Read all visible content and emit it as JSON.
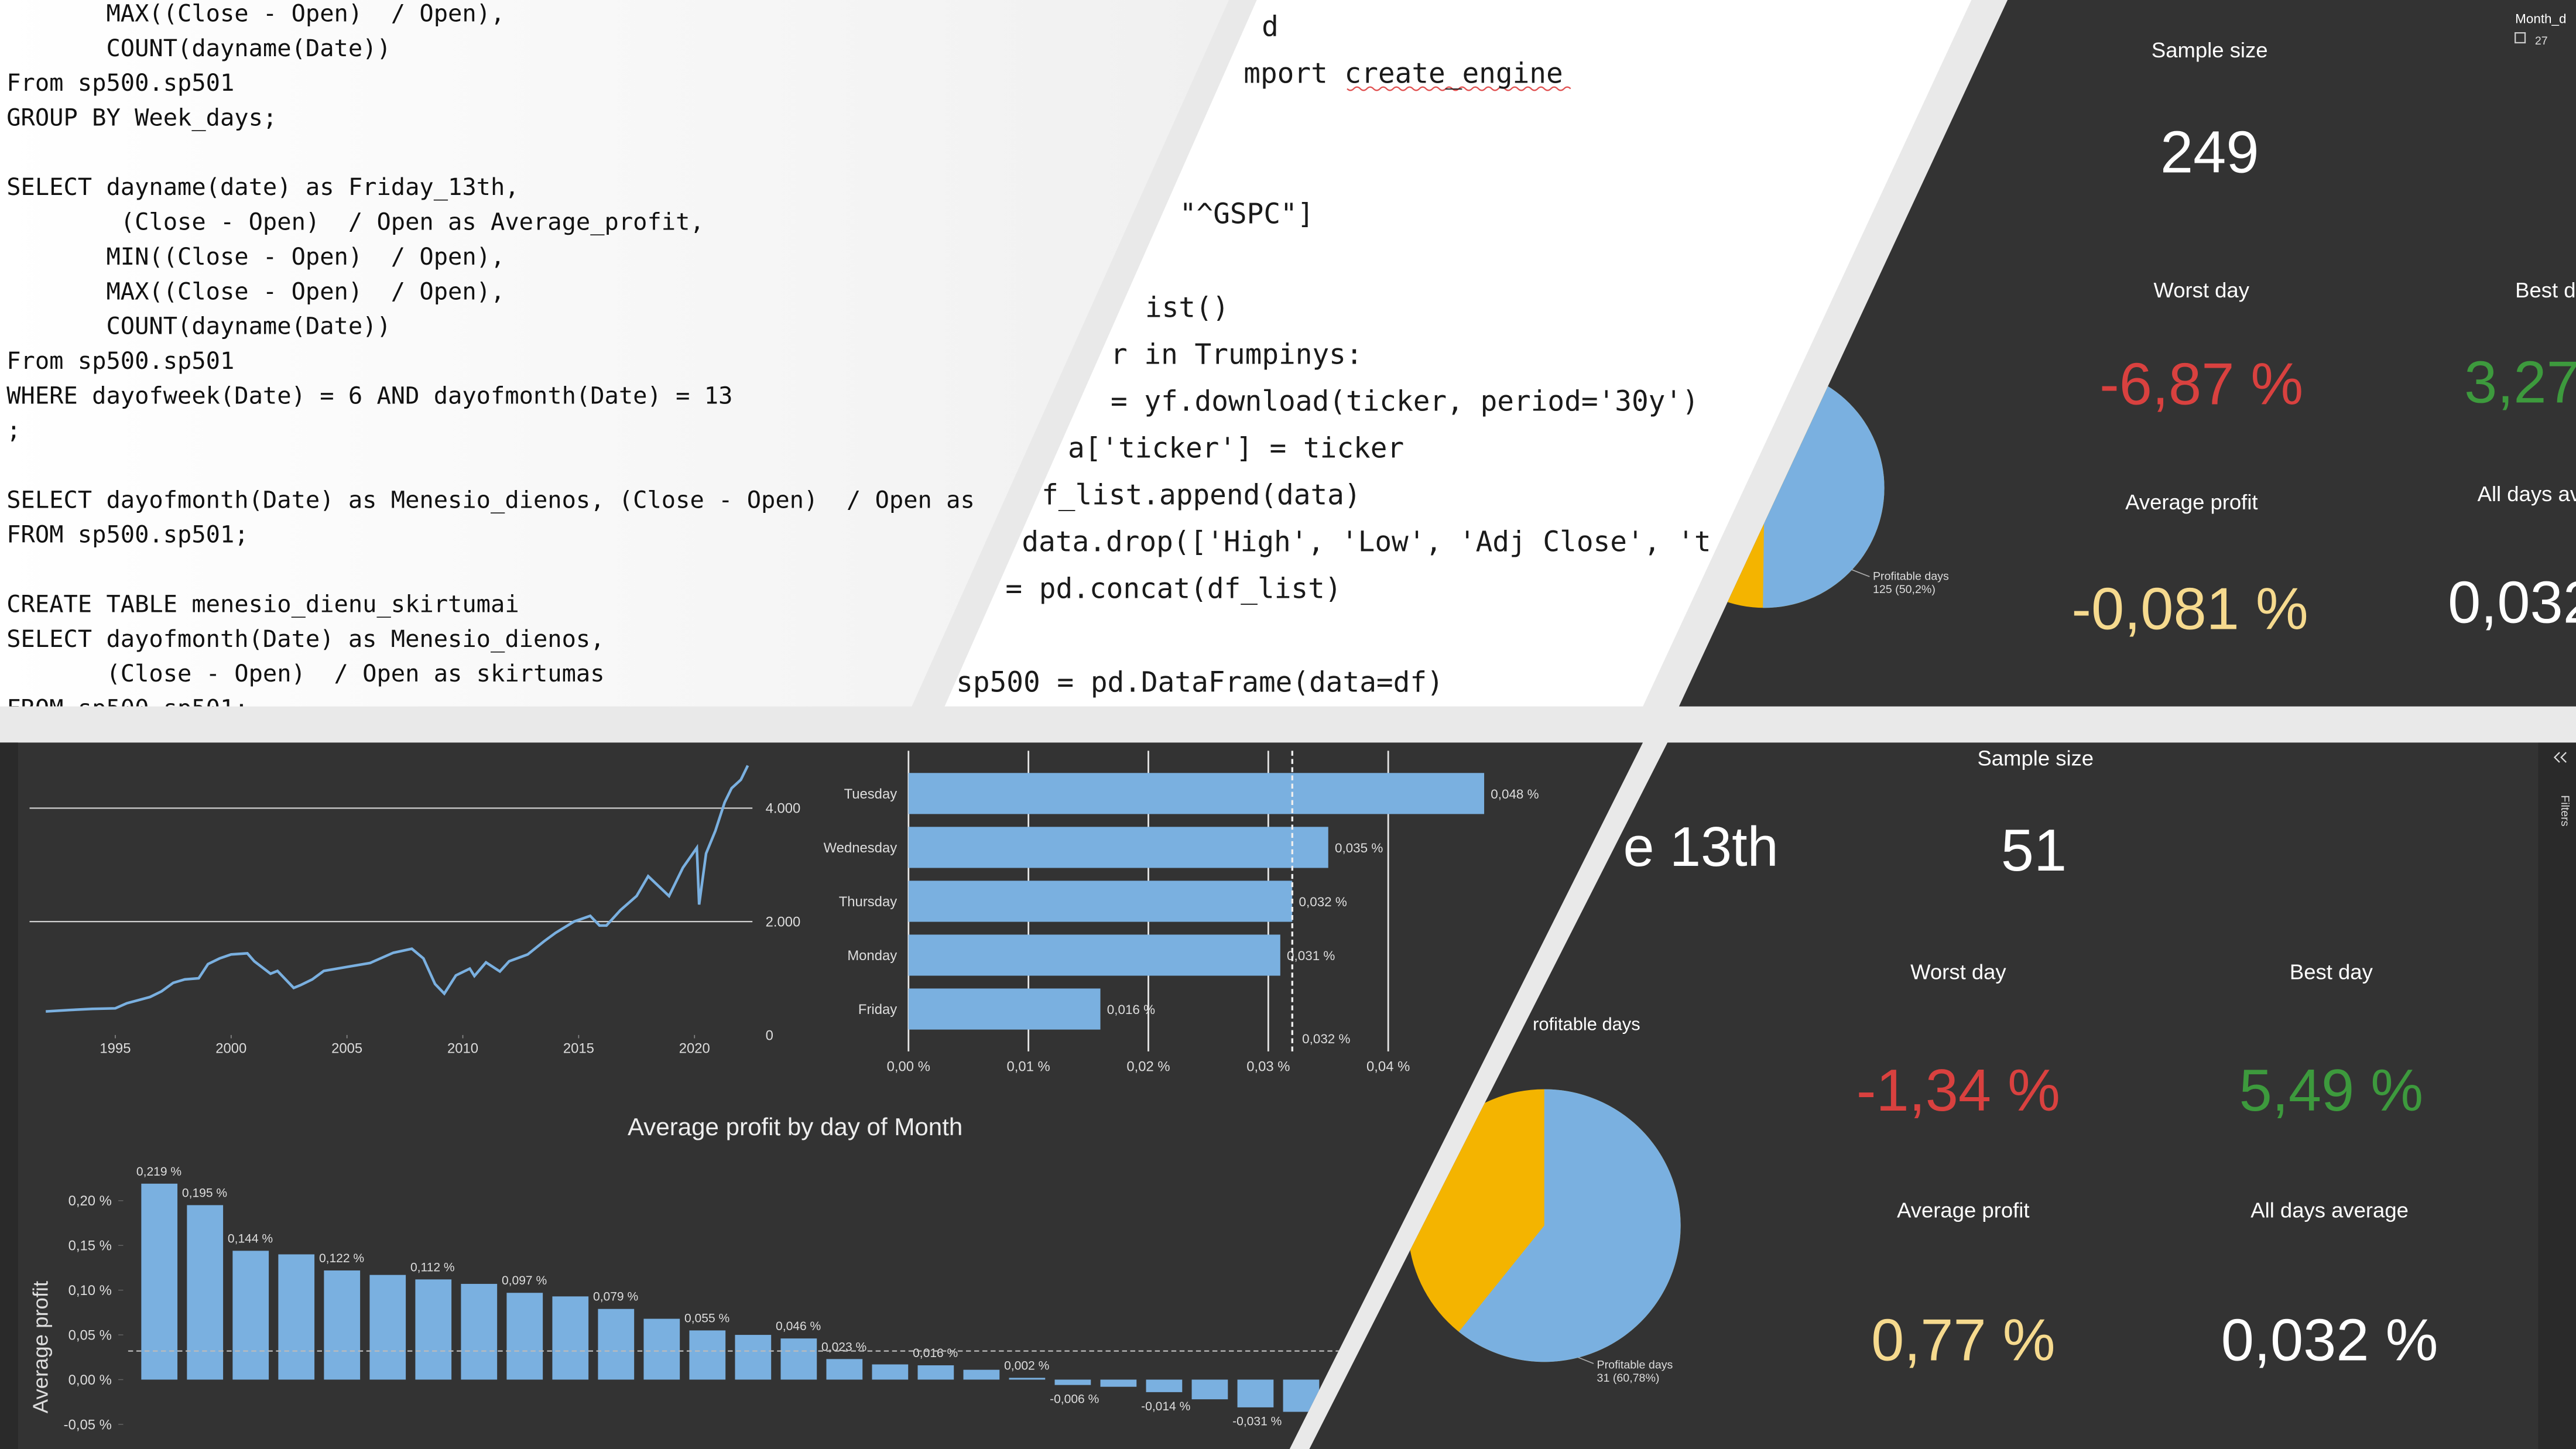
{
  "sql_editor": {
    "blocks": [
      [
        "       MAX((Close - Open)  / Open),",
        "       COUNT(dayname(Date))",
        "From sp500.sp501",
        "GROUP BY Week_days;"
      ],
      [
        "SELECT dayname(date) as Friday_13th,",
        "        (Close - Open)  / Open as Average_profit,",
        "       MIN((Close - Open)  / Open),",
        "       MAX((Close - Open)  / Open),",
        "       COUNT(dayname(Date))",
        "From sp500.sp501",
        "WHERE dayofweek(Date) = 6 AND dayofmonth(Date) = 13",
        ";"
      ],
      [
        "SELECT dayofmonth(Date) as Menesio_dienos, (Close - Open)  / Open as",
        "FROM sp500.sp501;"
      ],
      [
        "CREATE TABLE menesio_dienu_skirtumai",
        "SELECT dayofmonth(Date) as Menesio_dienos,",
        "       (Close - Open)  / Open as skirtumas",
        "FROM sp500.sp501;"
      ]
    ]
  },
  "python_editor": {
    "blocks": [
      [
        "d",
        "mport create_engine"
      ],
      [
        "\"^GSPC\"]"
      ],
      [
        "ist()",
        "r in Trumpinys:",
        "= yf.download(ticker, period='30y')",
        "a['ticker'] = ticker",
        "f_list.append(data)",
        "data.drop(['High', 'Low', 'Adj Close', 't",
        "= pd.concat(df_list)"
      ],
      [
        "sp500 = pd.DataFrame(data=df)"
      ]
    ]
  },
  "dashboard_top": {
    "filter_label": "Month_d",
    "filter_option": "27",
    "sample_size_label": "Sample size",
    "sample_size": "249",
    "worst_day_label": "Worst day",
    "worst_day": "-6,87 %",
    "best_day_label": "Best d",
    "best_day": "3,27",
    "average_profit_label": "Average profit",
    "average_profit": "-0,081 %",
    "all_days_label": "All days av",
    "all_days": "0,032"
  },
  "dashboard_bottom": {
    "heading": "e 13th",
    "pie_title": "rofitable days",
    "sample_size_label": "Sample size",
    "sample_size": "51",
    "worst_day_label": "Worst day",
    "worst_day": "-1,34 %",
    "best_day_label": "Best day",
    "best_day": "5,49 %",
    "average_profit_label": "Average profit",
    "average_profit": "0,77 %",
    "all_days_label": "All days average",
    "all_days": "0,032 %",
    "filters_label": "Filters"
  },
  "chart_data": [
    {
      "type": "line",
      "x": [
        1992.0,
        1993.0,
        1994.0,
        1995.0,
        1995.5,
        1996.0,
        1996.5,
        1997.0,
        1997.5,
        1998.0,
        1998.6,
        1999.0,
        1999.5,
        2000.0,
        2000.7,
        2001.0,
        2001.7,
        2002.0,
        2002.7,
        2003.0,
        2003.5,
        2004.0,
        2005.0,
        2006.0,
        2007.0,
        2007.8,
        2008.3,
        2008.8,
        2009.2,
        2009.7,
        2010.3,
        2010.5,
        2011.0,
        2011.6,
        2012.0,
        2012.8,
        2013.5,
        2014.0,
        2014.8,
        2015.5,
        2015.9,
        2016.2,
        2016.8,
        2017.5,
        2018.0,
        2018.9,
        2019.5,
        2020.1,
        2020.2,
        2020.5,
        2020.9,
        2021.3,
        2021.6,
        2022.0,
        2022.3
      ],
      "values": [
        415,
        440,
        460,
        470,
        560,
        615,
        670,
        770,
        920,
        980,
        1000,
        1250,
        1350,
        1420,
        1440,
        1300,
        1080,
        1130,
        830,
        880,
        980,
        1130,
        1200,
        1270,
        1450,
        1520,
        1350,
        900,
        730,
        1050,
        1170,
        1040,
        1280,
        1120,
        1300,
        1420,
        1650,
        1800,
        2000,
        2100,
        1930,
        1930,
        2200,
        2450,
        2800,
        2450,
        2950,
        3300,
        2300,
        3200,
        3600,
        4100,
        4350,
        4500,
        4750
      ],
      "color": "#7ab0e0",
      "xlim": [
        1991.3,
        2022.5
      ],
      "ylim": [
        0,
        4750
      ],
      "xticks": [
        1995,
        2000,
        2005,
        2010,
        2015,
        2020
      ],
      "yticks": [
        0,
        {
          "value": 2000,
          "label": "2.000"
        },
        {
          "value": 4000,
          "label": "4.000"
        }
      ],
      "grid": true
    },
    {
      "type": "hbar",
      "categories": [
        "Tuesday",
        "Wednesday",
        "Thursday",
        "Monday",
        "Friday"
      ],
      "values": [
        0.048,
        0.035,
        0.032,
        0.031,
        0.016
      ],
      "value_labels": [
        "0,048 %",
        "0,035 %",
        "0,032 %",
        "0,031 %",
        "0,016 %"
      ],
      "color": "#7ab0e0",
      "xlim": [
        0,
        0.05
      ],
      "xticks": [
        {
          "value": 0,
          "label": "0,00 %"
        },
        {
          "value": 0.01,
          "label": "0,01 %"
        },
        {
          "value": 0.02,
          "label": "0,02 %"
        },
        {
          "value": 0.03,
          "label": "0,03 %"
        },
        {
          "value": 0.04,
          "label": "0,04 %"
        }
      ],
      "average": 0.032,
      "average_label": "0,032 %",
      "grid": true
    },
    {
      "type": "bar",
      "title": "Average profit by day of Month",
      "y_label": "Average profit",
      "categories": [
        null,
        null,
        null,
        null,
        null,
        null,
        null,
        null,
        null,
        null,
        null,
        null,
        null,
        null,
        null,
        null,
        null,
        null,
        null,
        null,
        null,
        null,
        null,
        null,
        null,
        null
      ],
      "values": [
        0.219,
        0.195,
        0.144,
        0.14,
        0.122,
        0.117,
        0.112,
        0.107,
        0.097,
        0.093,
        0.079,
        0.068,
        0.055,
        0.05,
        0.046,
        0.023,
        0.017,
        0.016,
        0.011,
        0.002,
        -0.006,
        -0.008,
        -0.014,
        -0.022,
        -0.031,
        -0.036
      ],
      "value_labels": [
        "0,219 %",
        "0,195 %",
        "0,144 %",
        null,
        "0,122 %",
        null,
        "0,112 %",
        null,
        "0,097 %",
        null,
        "0,079 %",
        null,
        "0,055 %",
        null,
        "0,046 %",
        "0,023 %",
        null,
        "0,016 %",
        null,
        "0,002 %",
        "-0,006 %",
        null,
        "-0,014 %",
        null,
        "-0,031 %",
        null
      ],
      "color": "#7ab0e0",
      "ylim": [
        -0.05,
        0.23
      ],
      "yticks": [
        {
          "value": -0.05,
          "label": "-0,05 %"
        },
        {
          "value": 0,
          "label": "0,00 %"
        },
        {
          "value": 0.05,
          "label": "0,05 %"
        },
        {
          "value": 0.1,
          "label": "0,10 %"
        },
        {
          "value": 0.15,
          "label": "0,15 %"
        },
        {
          "value": 0.2,
          "label": "0,20 %"
        }
      ],
      "average": 0.032
    },
    {
      "type": "pie",
      "categories": [
        "Profitable days"
      ],
      "values": [
        50.2
      ],
      "value_labels": [
        "125 (50,2%)"
      ],
      "colors": [
        "#7ab0e0"
      ],
      "rest_color": "#f4b400"
    },
    {
      "type": "pie",
      "categories": [
        "Profitable days"
      ],
      "values": [
        60.78
      ],
      "value_labels": [
        "31 (60,78%)"
      ],
      "colors": [
        "#7ab0e0"
      ],
      "rest_color": "#f4b400"
    }
  ]
}
